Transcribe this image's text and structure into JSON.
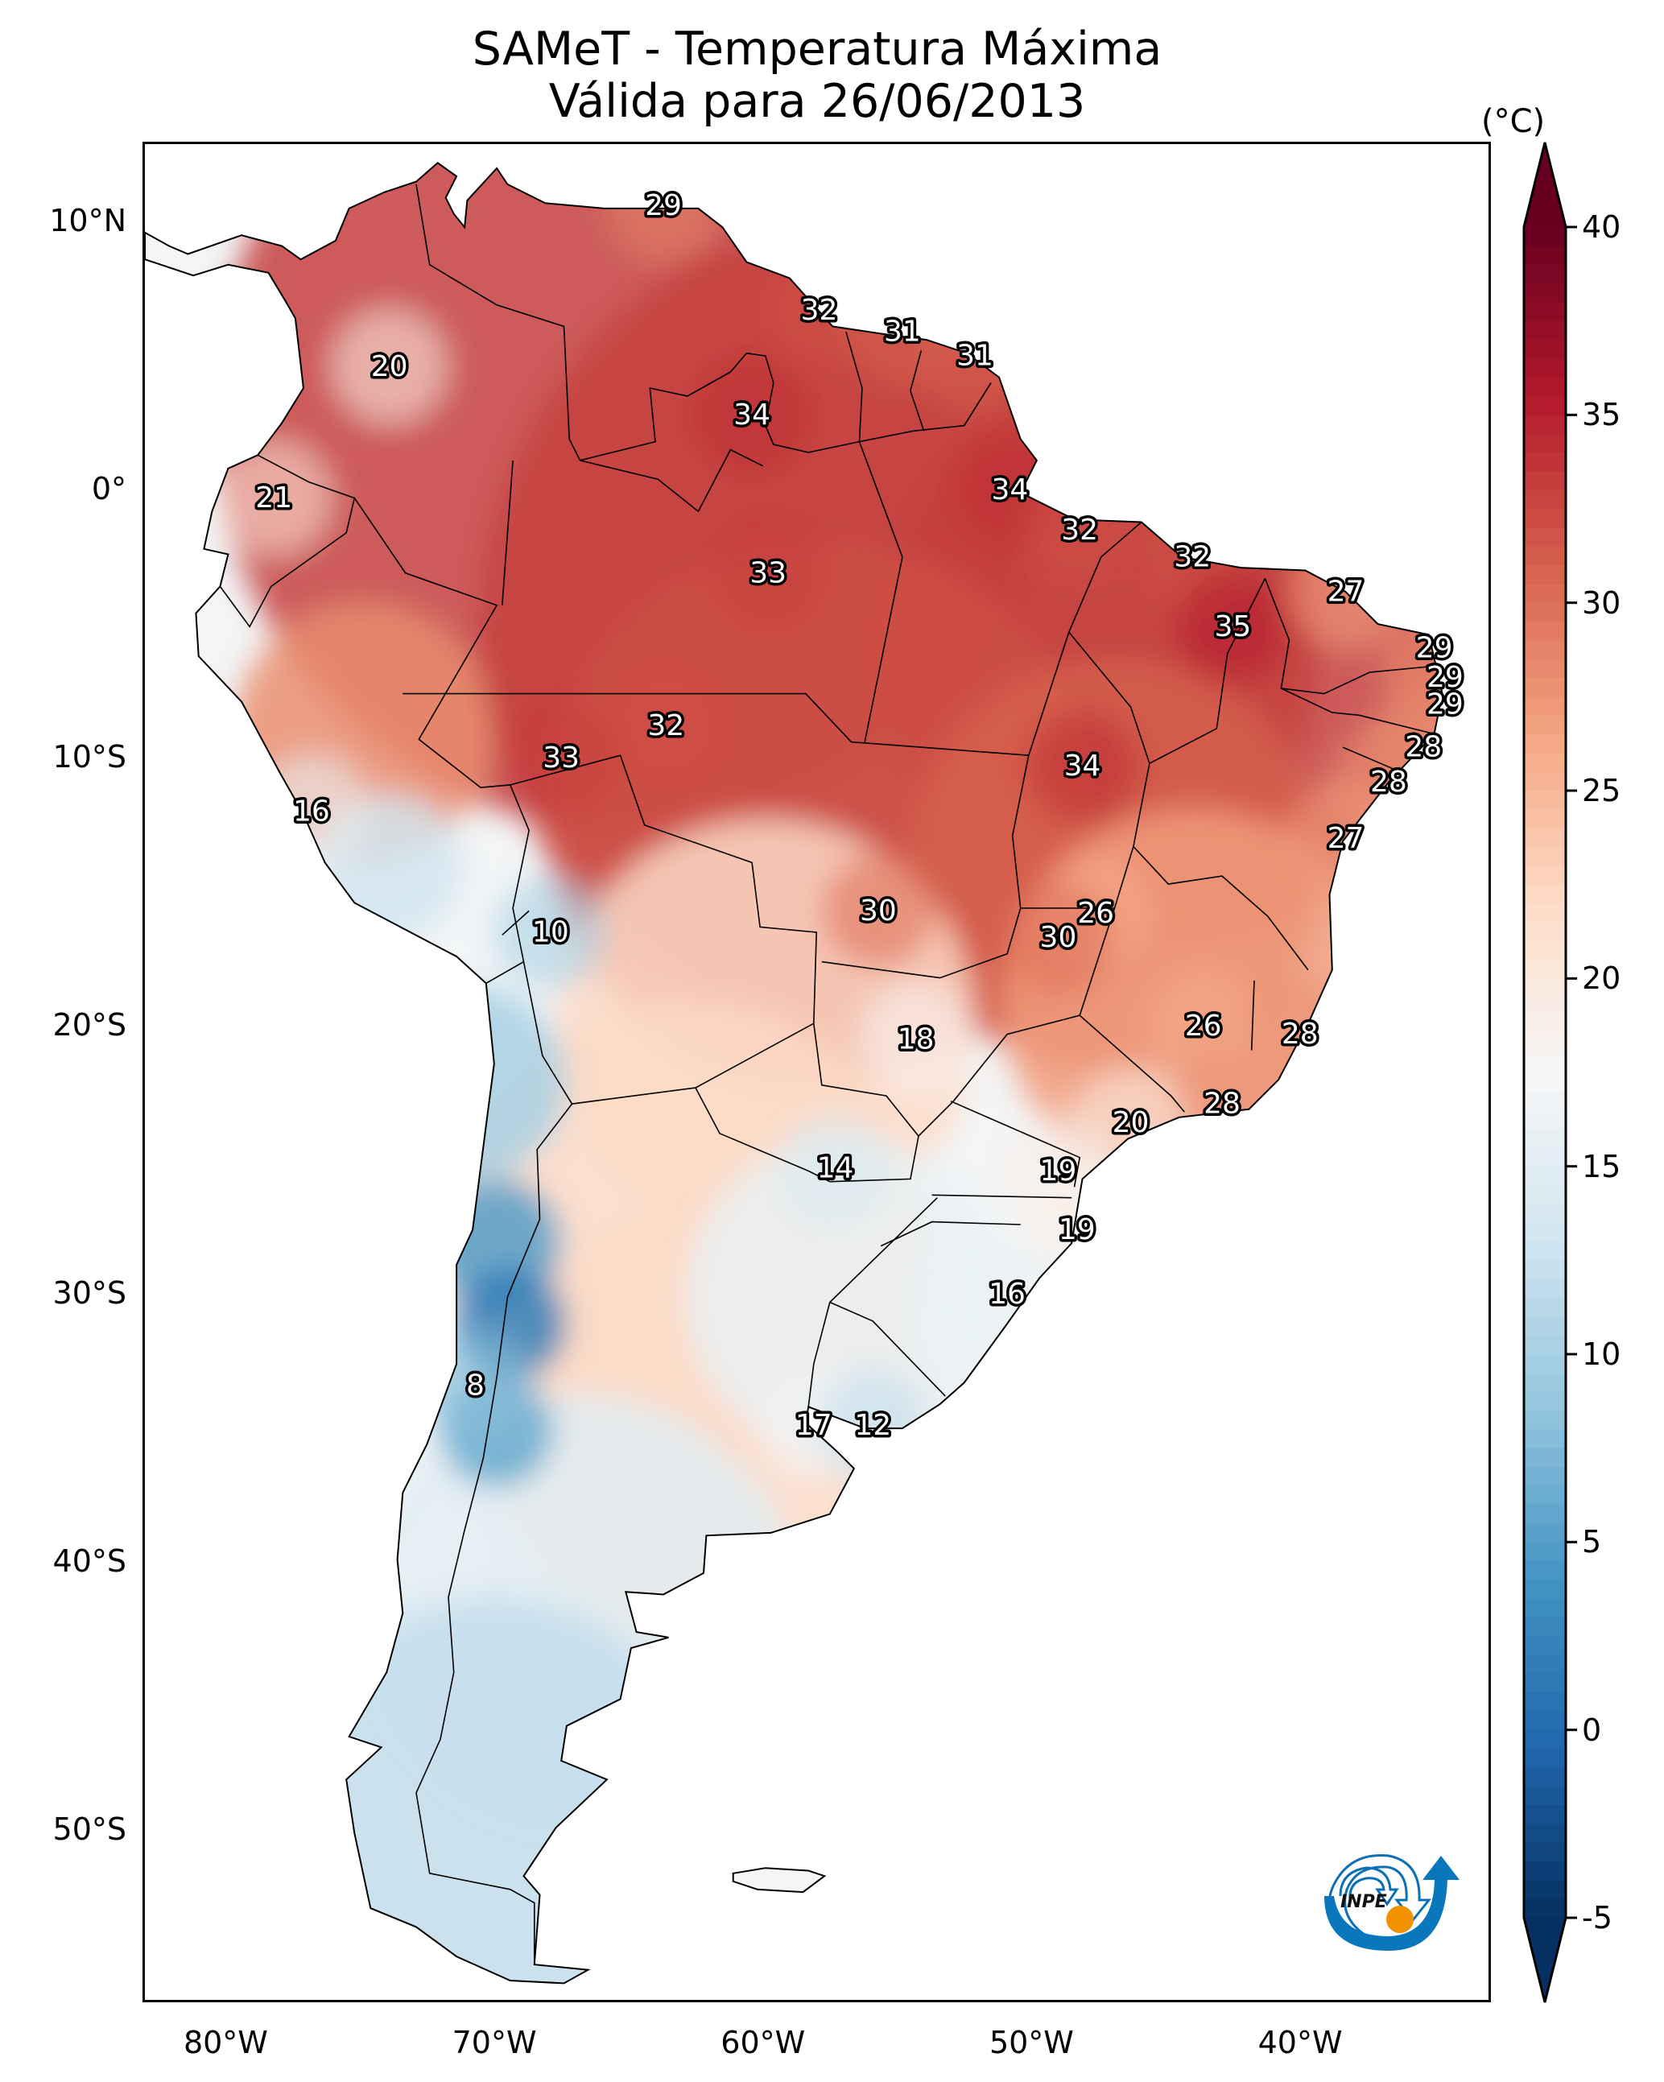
{
  "title": {
    "line1": "SAMeT - Temperatura Máxima",
    "line2": "Válida para 26/06/2013"
  },
  "logo": {
    "text": "INPE",
    "icon": "inpe-logo-icon"
  },
  "chart_data": {
    "type": "heatmap",
    "title": "SAMeT - Temperatura Máxima Válida para 26/06/2013",
    "variable": "Maximum temperature",
    "region": "South America",
    "xlabel": "",
    "ylabel": "",
    "xlim": [
      -83.1,
      -32.9
    ],
    "ylim": [
      -56.4,
      13.0
    ],
    "x_ticks": [
      {
        "value": -80,
        "label": "80°W"
      },
      {
        "value": -70,
        "label": "70°W"
      },
      {
        "value": -60,
        "label": "60°W"
      },
      {
        "value": -50,
        "label": "50°W"
      },
      {
        "value": -40,
        "label": "40°W"
      }
    ],
    "y_ticks": [
      {
        "value": 10,
        "label": "10°N"
      },
      {
        "value": 0,
        "label": "0°"
      },
      {
        "value": -10,
        "label": "10°S"
      },
      {
        "value": -20,
        "label": "20°S"
      },
      {
        "value": -30,
        "label": "30°S"
      },
      {
        "value": -40,
        "label": "40°S"
      },
      {
        "value": -50,
        "label": "50°S"
      }
    ],
    "colorbar": {
      "unit": "(°C)",
      "min": -5,
      "max": 40,
      "extend": "both",
      "colormap": "RdBu_r",
      "ticks": [
        {
          "value": 40,
          "label": "40"
        },
        {
          "value": 35,
          "label": "35"
        },
        {
          "value": 30,
          "label": "30"
        },
        {
          "value": 25,
          "label": "25"
        },
        {
          "value": 20,
          "label": "20"
        },
        {
          "value": 15,
          "label": "15"
        },
        {
          "value": 10,
          "label": "10"
        },
        {
          "value": 5,
          "label": "5"
        },
        {
          "value": 0,
          "label": "0"
        },
        {
          "value": -5,
          "label": "-5"
        }
      ]
    },
    "point_labels": [
      {
        "lon": -63.8,
        "lat": 10.7,
        "value": 29
      },
      {
        "lon": -74.0,
        "lat": 4.7,
        "value": 20
      },
      {
        "lon": -78.3,
        "lat": -0.2,
        "value": 21
      },
      {
        "lon": -58.0,
        "lat": 6.8,
        "value": 32
      },
      {
        "lon": -54.9,
        "lat": 6.0,
        "value": 31
      },
      {
        "lon": -52.2,
        "lat": 5.1,
        "value": 31
      },
      {
        "lon": -60.5,
        "lat": 2.9,
        "value": 34
      },
      {
        "lon": -50.9,
        "lat": 0.1,
        "value": 34
      },
      {
        "lon": -48.3,
        "lat": -1.4,
        "value": 32
      },
      {
        "lon": -44.1,
        "lat": -2.4,
        "value": 32
      },
      {
        "lon": -59.9,
        "lat": -3.0,
        "value": 33
      },
      {
        "lon": -38.4,
        "lat": -3.7,
        "value": 27
      },
      {
        "lon": -42.6,
        "lat": -5.0,
        "value": 35
      },
      {
        "lon": -35.1,
        "lat": -5.8,
        "value": 29
      },
      {
        "lon": -34.7,
        "lat": -6.9,
        "value": 29
      },
      {
        "lon": -34.7,
        "lat": -7.9,
        "value": 29
      },
      {
        "lon": -63.7,
        "lat": -8.7,
        "value": 32
      },
      {
        "lon": -35.5,
        "lat": -9.5,
        "value": 28
      },
      {
        "lon": -67.6,
        "lat": -9.9,
        "value": 33
      },
      {
        "lon": -48.2,
        "lat": -10.2,
        "value": 34
      },
      {
        "lon": -36.8,
        "lat": -10.8,
        "value": 28
      },
      {
        "lon": -76.9,
        "lat": -11.9,
        "value": 16
      },
      {
        "lon": -38.4,
        "lat": -12.9,
        "value": 27
      },
      {
        "lon": -55.8,
        "lat": -15.6,
        "value": 30
      },
      {
        "lon": -47.7,
        "lat": -15.7,
        "value": 26
      },
      {
        "lon": -49.1,
        "lat": -16.6,
        "value": 30
      },
      {
        "lon": -68.0,
        "lat": -16.4,
        "value": 10
      },
      {
        "lon": -43.7,
        "lat": -19.9,
        "value": 26
      },
      {
        "lon": -40.1,
        "lat": -20.2,
        "value": 28
      },
      {
        "lon": -54.4,
        "lat": -20.4,
        "value": 18
      },
      {
        "lon": -43.0,
        "lat": -22.8,
        "value": 28
      },
      {
        "lon": -46.4,
        "lat": -23.5,
        "value": 20
      },
      {
        "lon": -57.4,
        "lat": -25.2,
        "value": 14
      },
      {
        "lon": -49.1,
        "lat": -25.3,
        "value": 19
      },
      {
        "lon": -48.4,
        "lat": -27.5,
        "value": 19
      },
      {
        "lon": -51.0,
        "lat": -29.9,
        "value": 16
      },
      {
        "lon": -70.8,
        "lat": -33.3,
        "value": 8
      },
      {
        "lon": -58.2,
        "lat": -34.8,
        "value": 17
      },
      {
        "lon": -56.0,
        "lat": -34.8,
        "value": 12
      }
    ]
  }
}
